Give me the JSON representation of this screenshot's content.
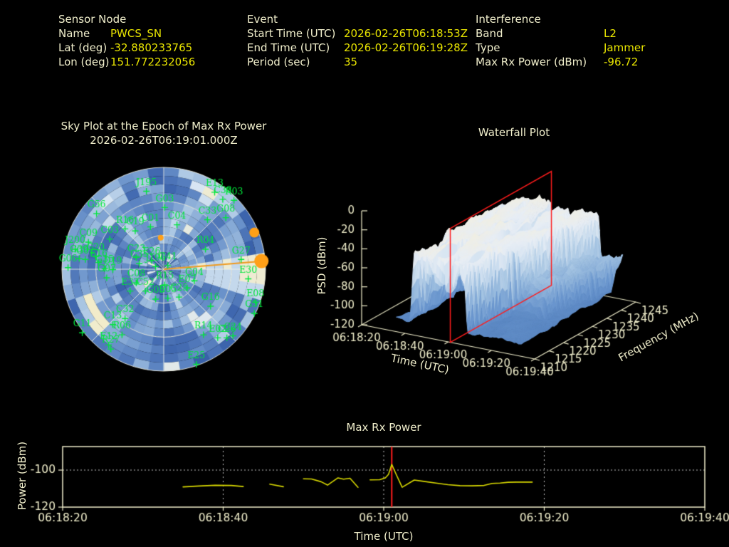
{
  "header": {
    "sensor_node": {
      "title": "Sensor Node",
      "rows": [
        {
          "label": "Name",
          "value": "PWCS_SN"
        },
        {
          "label": "Lat (deg)",
          "value": "-32.880233765"
        },
        {
          "label": "Lon (deg)",
          "value": "151.772232056"
        }
      ]
    },
    "event": {
      "title": "Event",
      "rows": [
        {
          "label": "Start Time (UTC)",
          "value": "2026-02-26T06:18:53Z"
        },
        {
          "label": "End Time (UTC)",
          "value": "2026-02-26T06:19:28Z"
        },
        {
          "label": "Period (sec)",
          "value": "35"
        }
      ]
    },
    "interference": {
      "title": "Interference",
      "rows": [
        {
          "label": "Band",
          "value": "L2"
        },
        {
          "label": "Type",
          "value": "Jammer"
        },
        {
          "label": "Max Rx Power (dBm)",
          "value": "-96.72"
        }
      ]
    }
  },
  "colors": {
    "background": "#000000",
    "text": "#f0eecb",
    "value_yellow": "#e8e400",
    "satellite_green": "#00e63c",
    "interference_orange": "#ef9b20",
    "slice_red": "#ff1c1c",
    "power_line_yellow": "#d9d900",
    "grid_grey": "#cccccc"
  },
  "chart_data": [
    {
      "id": "sky_plot",
      "type": "heatmap",
      "subtype": "polar_sky_plot",
      "title": "Sky Plot at the Epoch of Max Rx Power",
      "subtitle": "2026-02-26T06:19:01.000Z",
      "rings_elevation_deg": [
        0,
        30,
        60
      ],
      "spoke_step_deg": 45,
      "marker_symbol": "+",
      "label_color": "#00e63c",
      "palette": [
        [
          0,
          "#27498f"
        ],
        [
          0.25,
          "#3c64ad"
        ],
        [
          0.5,
          "#6b93cb"
        ],
        [
          0.7,
          "#a9c6e3"
        ],
        [
          0.85,
          "#dce8f4"
        ],
        [
          1,
          "#f2ecca"
        ]
      ],
      "heatmap_params": {
        "seed": 3,
        "sectors": 40,
        "rings": 12,
        "hotspot_azimuth_deg": 92
      },
      "interference_bearing": {
        "line_to": [
          0.99,
          -0.08
        ],
        "line_color": "#ef9b20",
        "markers": [
          [
            -0.03,
            -0.31,
            4
          ],
          [
            0.89,
            -0.36,
            7
          ],
          [
            0.96,
            -0.08,
            10
          ]
        ]
      },
      "satellites": [
        {
          "id": "J195",
          "x": -0.17,
          "y": -0.85
        },
        {
          "id": "G03",
          "x": 0.01,
          "y": -0.69
        },
        {
          "id": "E13",
          "x": 0.5,
          "y": -0.84
        },
        {
          "id": "C38",
          "x": 0.58,
          "y": -0.77
        },
        {
          "id": "R03",
          "x": 0.69,
          "y": -0.76
        },
        {
          "id": "G56",
          "x": -0.66,
          "y": -0.63
        },
        {
          "id": "C33",
          "x": 0.43,
          "y": -0.57
        },
        {
          "id": "G08",
          "x": 0.61,
          "y": -0.59
        },
        {
          "id": "R16",
          "x": -0.38,
          "y": -0.48
        },
        {
          "id": "C19",
          "x": -0.28,
          "y": -0.46
        },
        {
          "id": "C01",
          "x": -0.13,
          "y": -0.5
        },
        {
          "id": "C04",
          "x": 0.13,
          "y": -0.52
        },
        {
          "id": "C09",
          "x": -0.74,
          "y": -0.35
        },
        {
          "id": "C03",
          "x": -0.53,
          "y": -0.38
        },
        {
          "id": "R04",
          "x": 0.41,
          "y": -0.28
        },
        {
          "id": "J200",
          "x": -0.87,
          "y": -0.28
        },
        {
          "id": "G39",
          "x": -0.83,
          "y": -0.19
        },
        {
          "id": "G02",
          "x": -0.77,
          "y": -0.18
        },
        {
          "id": "G06",
          "x": -0.94,
          "y": -0.1
        },
        {
          "id": "C20",
          "x": -0.67,
          "y": -0.21
        },
        {
          "id": "E16",
          "x": -0.64,
          "y": -0.15
        },
        {
          "id": "G35",
          "x": -0.58,
          "y": -0.09
        },
        {
          "id": "D19",
          "x": -0.5,
          "y": -0.08
        },
        {
          "id": "G07",
          "x": -0.56,
          "y": 0.0
        },
        {
          "id": "C23",
          "x": -0.27,
          "y": -0.2
        },
        {
          "id": "C35",
          "x": -0.24,
          "y": -0.14
        },
        {
          "id": "E26",
          "x": -0.12,
          "y": -0.17
        },
        {
          "id": "J196",
          "x": -0.08,
          "y": -0.11
        },
        {
          "id": "G41",
          "x": 0.04,
          "y": -0.12
        },
        {
          "id": "R15",
          "x": 0.01,
          "y": 0.07
        },
        {
          "id": "C08",
          "x": -0.27,
          "y": 0.05
        },
        {
          "id": "E33",
          "x": -0.33,
          "y": 0.13
        },
        {
          "id": "C52",
          "x": -0.18,
          "y": 0.13
        },
        {
          "id": "G05",
          "x": -0.08,
          "y": 0.21
        },
        {
          "id": "E05",
          "x": 0.04,
          "y": 0.2
        },
        {
          "id": "C25",
          "x": 0.15,
          "y": 0.19
        },
        {
          "id": "G04",
          "x": 0.3,
          "y": 0.03
        },
        {
          "id": "E07",
          "x": 0.23,
          "y": 0.1
        },
        {
          "id": "G16",
          "x": 0.46,
          "y": 0.28
        },
        {
          "id": "E08",
          "x": 0.9,
          "y": 0.24
        },
        {
          "id": "G51",
          "x": 0.89,
          "y": 0.35
        },
        {
          "id": "R14",
          "x": 0.39,
          "y": 0.56
        },
        {
          "id": "E02",
          "x": 0.53,
          "y": 0.59
        },
        {
          "id": "C26",
          "x": 0.62,
          "y": 0.59
        },
        {
          "id": "C24",
          "x": 0.68,
          "y": 0.57
        },
        {
          "id": "E25",
          "x": 0.32,
          "y": 0.85
        },
        {
          "id": "G11",
          "x": -0.8,
          "y": 0.54
        },
        {
          "id": "C32",
          "x": -0.38,
          "y": 0.4
        },
        {
          "id": "C13",
          "x": -0.5,
          "y": 0.46
        },
        {
          "id": "R06",
          "x": -0.41,
          "y": 0.56
        },
        {
          "id": "E12",
          "x": -0.54,
          "y": 0.66
        },
        {
          "id": "R27",
          "x": -0.52,
          "y": 0.7
        },
        {
          "id": "G27",
          "x": 0.76,
          "y": -0.18
        },
        {
          "id": "E30",
          "x": 0.83,
          "y": 0.01
        }
      ]
    },
    {
      "id": "waterfall",
      "type": "heatmap",
      "subtype": "3d_surface_waterfall",
      "title": "Waterfall Plot",
      "xlabel": "Time (UTC)",
      "ylabel": "Frequency (MHz)",
      "zlabel": "PSD (dBm)",
      "x_ticks": [
        "06:18:20",
        "06:18:40",
        "06:19:00",
        "06:19:20",
        "06:19:40"
      ],
      "x_ticks_s": [
        0,
        20,
        40,
        60,
        80
      ],
      "y_ticks": [
        1210,
        1215,
        1220,
        1225,
        1230,
        1235,
        1240,
        1245
      ],
      "z_ticks": [
        0,
        -20,
        -40,
        -60,
        -80,
        -100,
        -120
      ],
      "zlim": [
        -120,
        0
      ],
      "slice_time": "06:19:01",
      "slice_time_s": 41,
      "slice_color": "#ff1c1c",
      "palette": [
        [
          0,
          "#4a78b8"
        ],
        [
          0.2,
          "#6b97cf"
        ],
        [
          0.4,
          "#a3c3e2"
        ],
        [
          0.55,
          "#cfe0f0"
        ],
        [
          0.68,
          "#e8eef5"
        ],
        [
          0.8,
          "#f5efdb"
        ],
        [
          1,
          "#f2e5ba"
        ]
      ],
      "surface_params": {
        "seed": 11,
        "t_range_s": [
          16,
          74
        ],
        "time_axis_span_s": 80,
        "freq_range_mhz": [
          1210,
          1245
        ],
        "floor_dbm": -104,
        "plateau_top_dbm": -33,
        "plateau_t_start_s": 21,
        "plateau_t_end_front_s": 45,
        "plateau_t_end_back_s": 61,
        "tail_dbm": -70,
        "tail_f_min_mhz": 1221
      }
    },
    {
      "id": "max_rx_power",
      "type": "line",
      "title": "Max Rx Power",
      "xlabel": "Time (UTC)",
      "ylabel": "Power (dBm)",
      "x_ticks": [
        "06:18:20",
        "06:18:40",
        "06:19:00",
        "06:19:20",
        "06:19:40"
      ],
      "x_ticks_s": [
        0,
        20,
        40,
        60,
        80
      ],
      "x_range_s": [
        0,
        80
      ],
      "y_ticks": [
        -100,
        -120
      ],
      "ylim": [
        -120,
        -87.3
      ],
      "x_gridlines_s": [
        20,
        40,
        60
      ],
      "y_gridline_dbm": -100,
      "marker_time_s": 41,
      "line_color": "#d9d900",
      "segments": [
        [
          [
            15,
            -109.1
          ],
          [
            17,
            -108.6
          ],
          [
            19,
            -108.2
          ],
          [
            21,
            -108.3
          ],
          [
            22.5,
            -108.9
          ]
        ],
        [
          [
            25.8,
            -107.6
          ],
          [
            27.5,
            -109.0
          ]
        ],
        [
          [
            30,
            -104.7
          ],
          [
            31,
            -104.8
          ],
          [
            32.2,
            -106.3
          ],
          [
            33,
            -108.1
          ],
          [
            34.3,
            -104.2
          ],
          [
            35,
            -104.9
          ],
          [
            35.8,
            -104.4
          ],
          [
            36.8,
            -109.3
          ]
        ],
        [
          [
            38.3,
            -105.3
          ],
          [
            39.5,
            -105.2
          ],
          [
            40.2,
            -104.2
          ],
          [
            40.6,
            -102.3
          ],
          [
            41,
            -96.9
          ],
          [
            41.6,
            -102.8
          ],
          [
            42.3,
            -109.3
          ],
          [
            43.8,
            -105.4
          ],
          [
            45,
            -106.1
          ],
          [
            46.5,
            -107.0
          ],
          [
            48,
            -107.9
          ],
          [
            49.5,
            -108.4
          ],
          [
            51,
            -108.5
          ],
          [
            52.5,
            -108.3
          ],
          [
            53.5,
            -107.2
          ],
          [
            54.5,
            -107.0
          ],
          [
            55.5,
            -106.6
          ],
          [
            56.5,
            -106.5
          ],
          [
            58.5,
            -106.5
          ]
        ]
      ]
    }
  ]
}
